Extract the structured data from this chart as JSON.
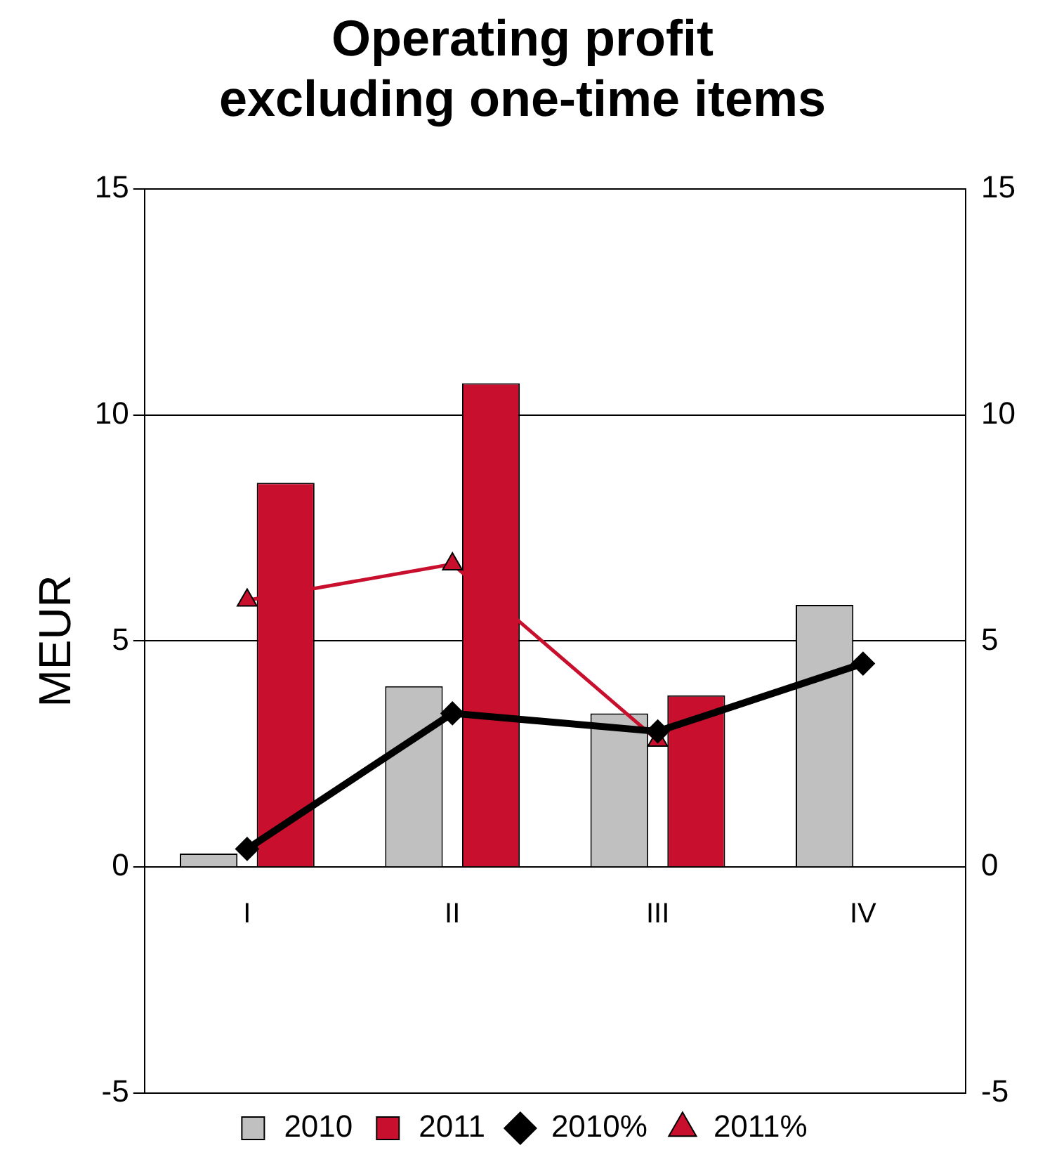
{
  "chart_data": {
    "type": "bar",
    "title": "Operating profit\nexcluding one-time items",
    "ylabel": "MEUR",
    "categories": [
      "I",
      "II",
      "III",
      "IV"
    ],
    "series": [
      {
        "name": "2010",
        "color": "#c0c0c0",
        "values": [
          0.3,
          4.0,
          3.4,
          5.8
        ]
      },
      {
        "name": "2011",
        "color": "#c8102e",
        "values": [
          8.5,
          10.7,
          3.8,
          null
        ]
      },
      {
        "name": "2010%",
        "type": "line",
        "axis": "y2",
        "color": "#000000",
        "marker": "diamond",
        "values": [
          0.4,
          3.4,
          3.0,
          4.5
        ]
      },
      {
        "name": "2011%",
        "type": "line",
        "axis": "y2",
        "color": "#c8102e",
        "marker": "triangle",
        "values": [
          5.9,
          6.7,
          2.8,
          null
        ]
      }
    ],
    "ylim": [
      -5,
      15
    ],
    "yticks": [
      -5,
      0,
      5,
      10,
      15
    ],
    "y2lim": [
      -5,
      15
    ],
    "y2ticks": [
      -5,
      0,
      5,
      10,
      15
    ],
    "grid": "y",
    "legend": "bottom"
  }
}
